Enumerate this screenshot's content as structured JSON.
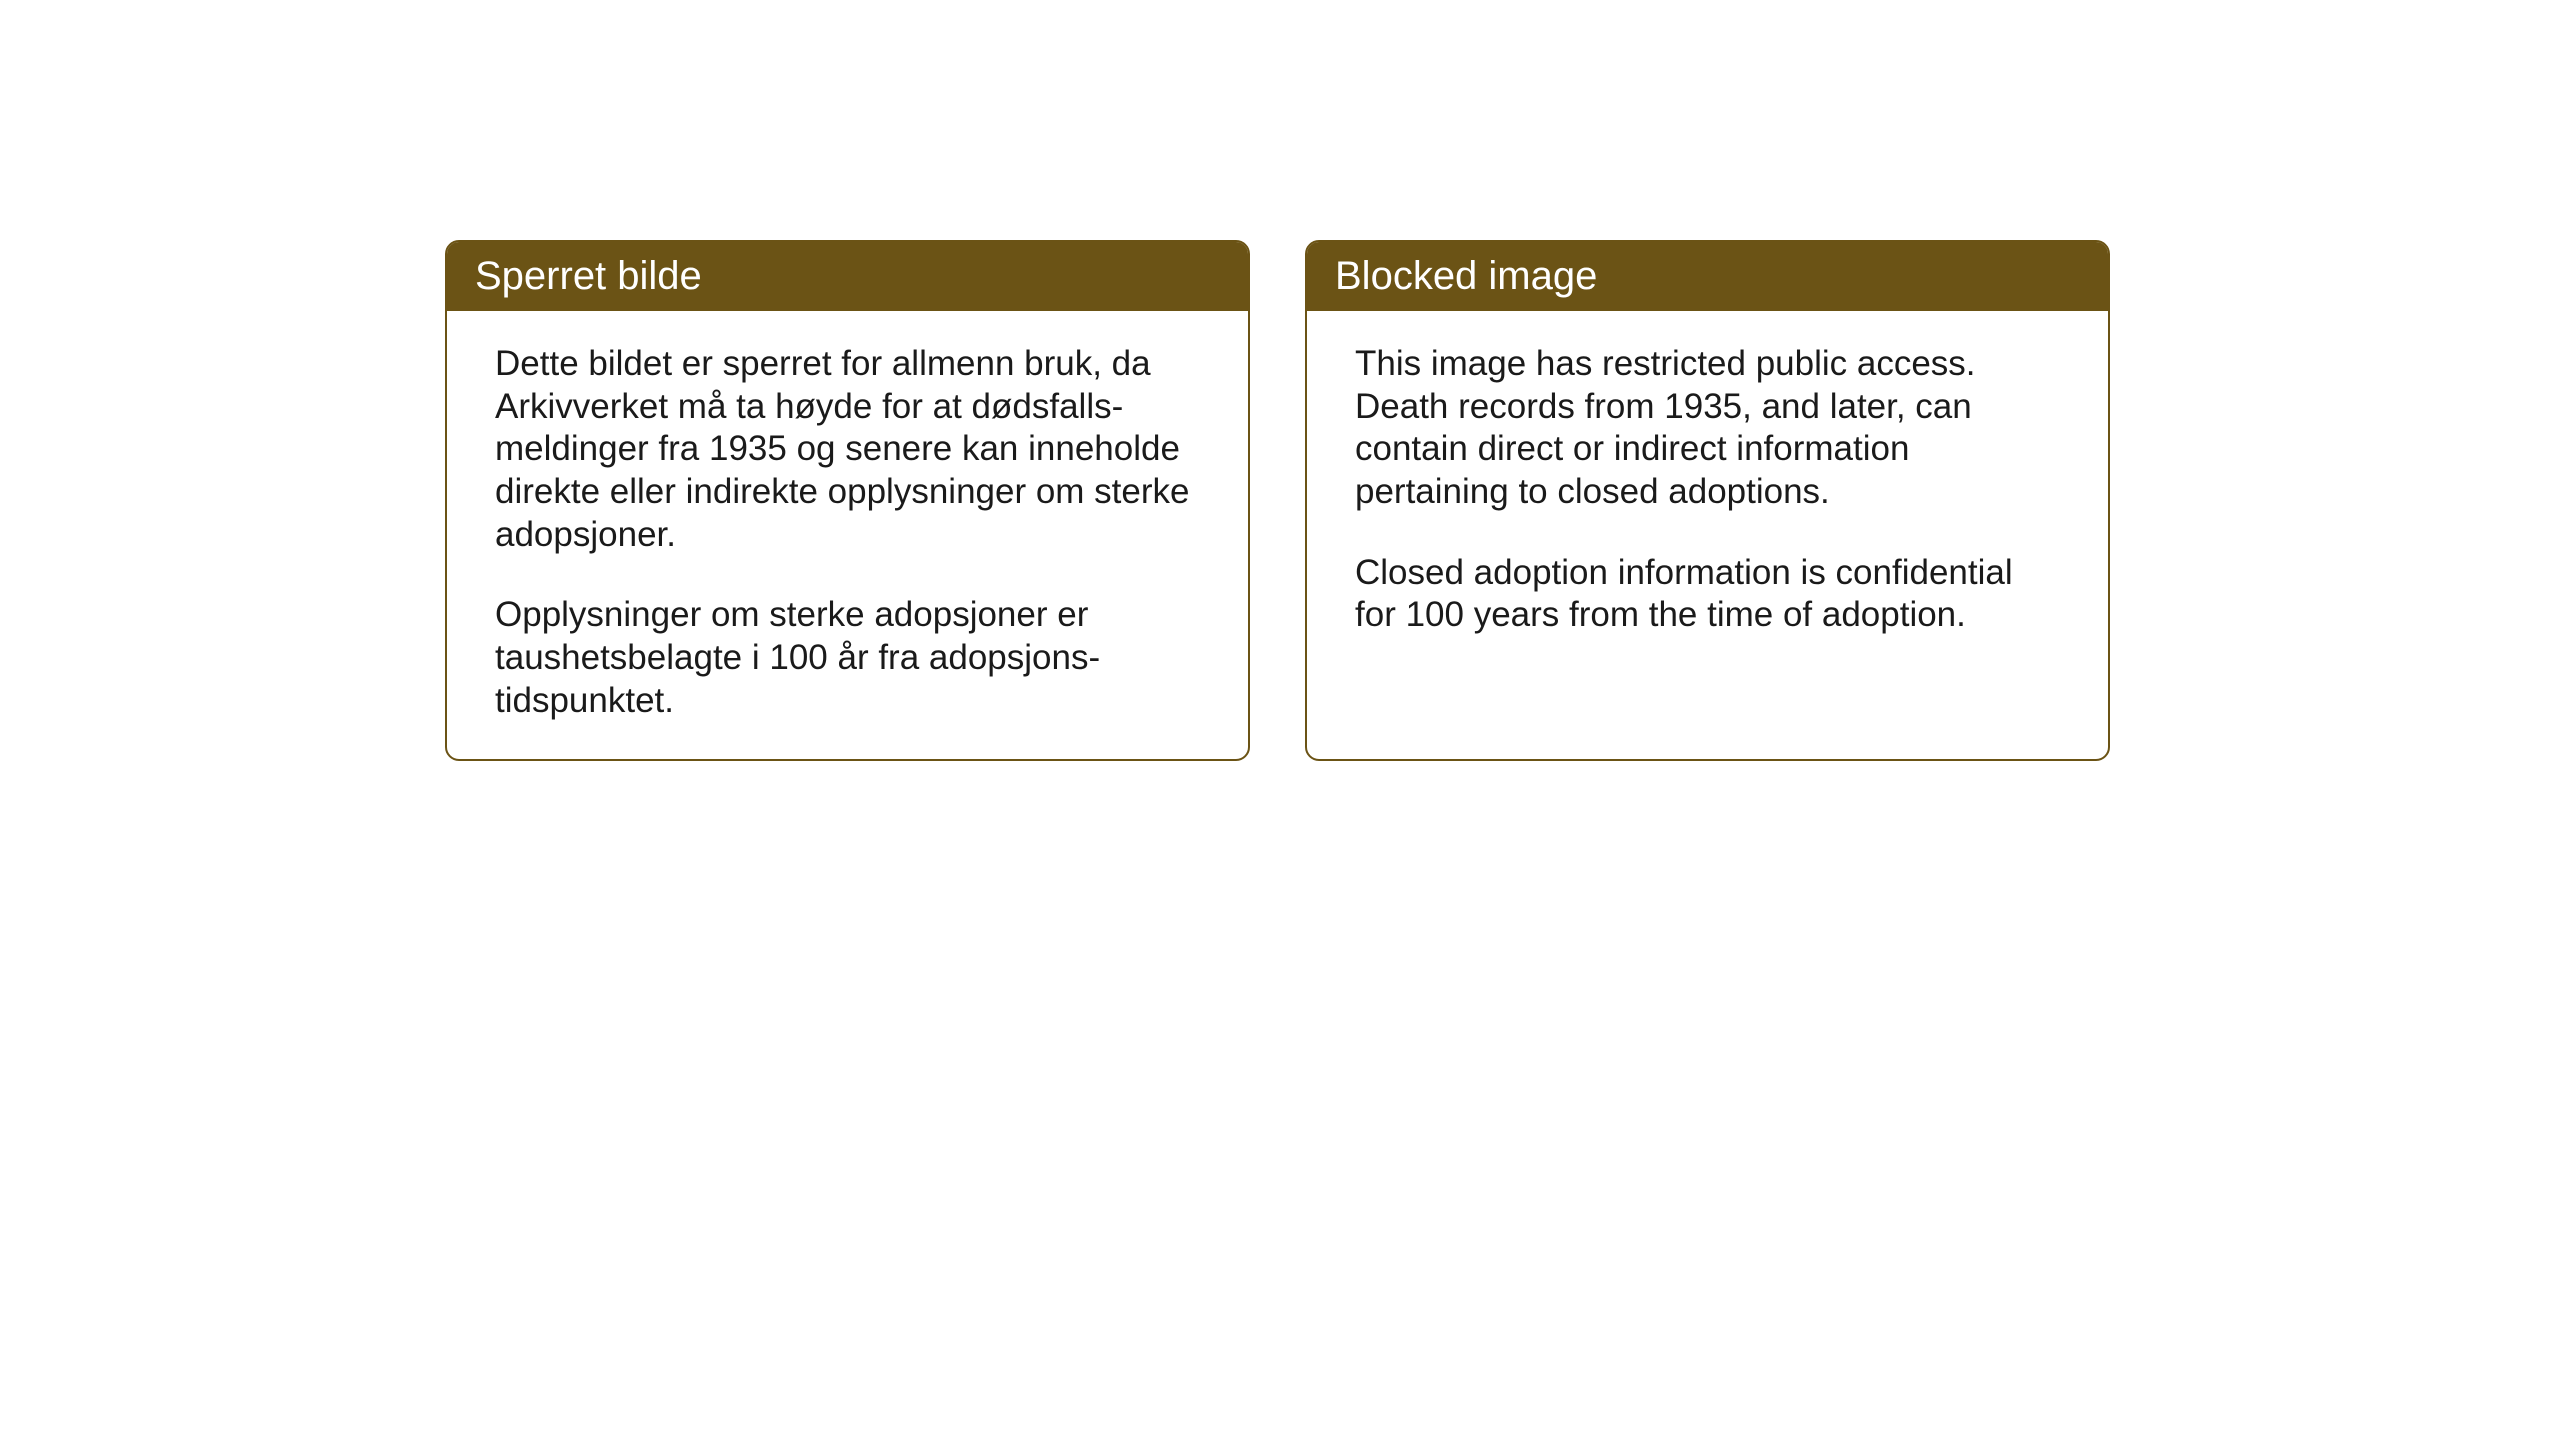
{
  "layout": {
    "background_color": "#ffffff",
    "box_border_color": "#6b5315",
    "header_bg_color": "#6b5315",
    "header_text_color": "#ffffff",
    "body_text_color": "#1a1a1a",
    "header_fontsize": 40,
    "body_fontsize": 35,
    "border_radius": 14,
    "border_width": 2
  },
  "boxes": {
    "norwegian": {
      "title": "Sperret bilde",
      "paragraph1": "Dette bildet er sperret for allmenn bruk, da Arkivverket må ta høyde for at dødsfalls-meldinger fra 1935 og senere kan inneholde direkte eller indirekte opplysninger om sterke adopsjoner.",
      "paragraph2": "Opplysninger om sterke adopsjoner er taushetsbelagte i 100 år fra adopsjons-tidspunktet."
    },
    "english": {
      "title": "Blocked image",
      "paragraph1": "This image has restricted public access. Death records from 1935, and later, can contain direct or indirect information pertaining to closed adoptions.",
      "paragraph2": "Closed adoption information is confidential for 100 years from the time of adoption."
    }
  }
}
